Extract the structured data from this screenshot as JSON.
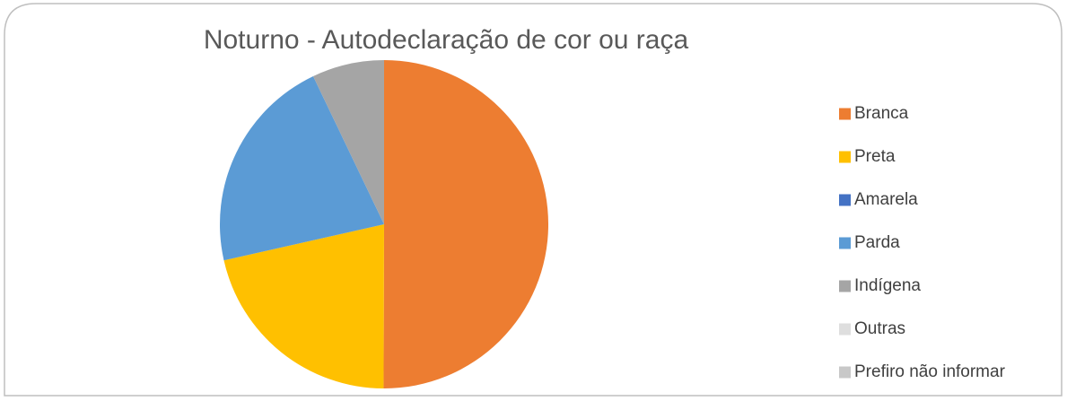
{
  "chart_data": {
    "type": "pie",
    "title": "Noturno - Autodeclaração de cor ou raça",
    "categories": [
      "Branca",
      "Preta",
      "Amarela",
      "Parda",
      "Indígena",
      "Outras",
      "Prefiro não informar"
    ],
    "values": [
      50,
      21.4,
      0,
      21.4,
      7.1,
      0,
      0
    ],
    "colors": [
      "#ED7D31",
      "#FFC000",
      "#4472C4",
      "#5B9BD5",
      "#A5A5A5",
      "#DEDEDE",
      "#C8C8C8"
    ],
    "legend": "right"
  }
}
